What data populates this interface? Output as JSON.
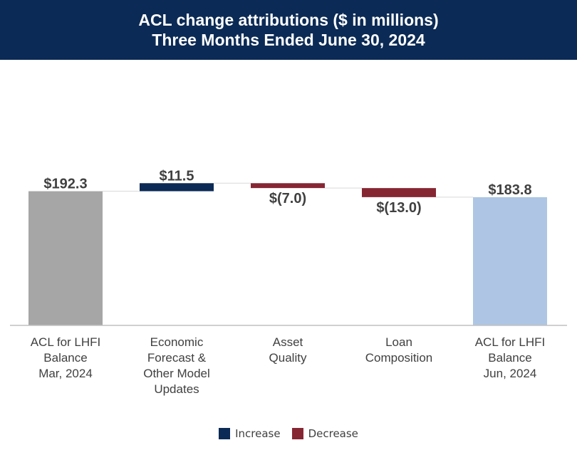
{
  "title": {
    "line1": "ACL change attributions ($ in millions)",
    "line2": "Three Months Ended June 30, 2024"
  },
  "colors": {
    "balance_start": "#a6a6a6",
    "balance_end": "#aec6e4",
    "increase": "#0b2a55",
    "decrease": "#862633",
    "connector": "#d9d9d9",
    "axis": "#c0c0c0",
    "label": "#404040",
    "title_bg": "#0b2a55"
  },
  "chart_data": {
    "type": "waterfall",
    "title": "ACL change attributions ($ in millions)",
    "subtitle": "Three Months Ended June 30, 2024",
    "ylim": [
      0,
      220
    ],
    "categories": [
      [
        "ACL for LHFI",
        "Balance",
        "Mar, 2024"
      ],
      [
        "Economic",
        "Forecast &",
        "Other Model",
        "Updates"
      ],
      [
        "Asset",
        "Quality"
      ],
      [
        "Loan",
        "Composition"
      ],
      [
        "ACL for LHFI",
        "Balance",
        "Jun, 2024"
      ]
    ],
    "steps": [
      {
        "kind": "total",
        "value": 192.3,
        "label": "$192.3"
      },
      {
        "kind": "increase",
        "value": 11.5,
        "label": "$11.5"
      },
      {
        "kind": "decrease",
        "value": -7.0,
        "label": "$(7.0)"
      },
      {
        "kind": "decrease",
        "value": -13.0,
        "label": "$(13.0)"
      },
      {
        "kind": "total",
        "value": 183.8,
        "label": "$183.8"
      }
    ],
    "legend": [
      {
        "label": "Increase",
        "color": "#0b2a55"
      },
      {
        "label": "Decrease",
        "color": "#862633"
      }
    ]
  }
}
